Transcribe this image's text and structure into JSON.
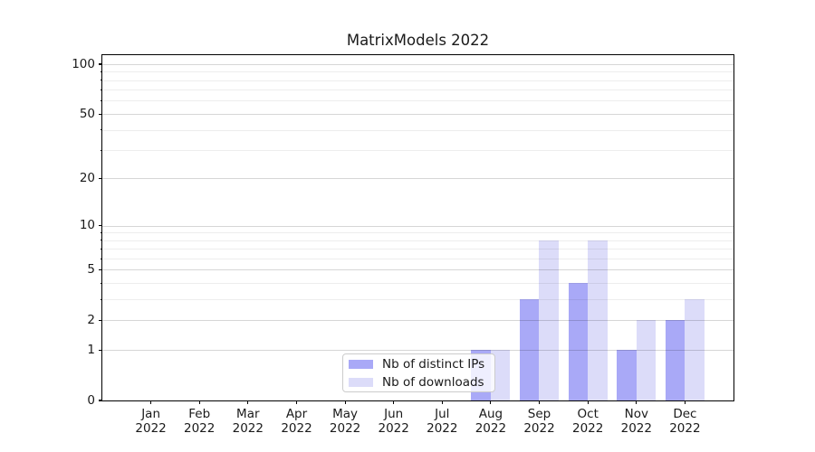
{
  "title": "MatrixModels 2022",
  "legend": {
    "items": [
      {
        "label": "Nb of distinct IPs",
        "color": "#a9a9f7"
      },
      {
        "label": "Nb of downloads",
        "color": "#dcdcf9"
      }
    ]
  },
  "chart_data": {
    "type": "bar",
    "title": "MatrixModels 2022",
    "categories": [
      "Jan",
      "Feb",
      "Mar",
      "Apr",
      "May",
      "Jun",
      "Jul",
      "Aug",
      "Sep",
      "Oct",
      "Nov",
      "Dec"
    ],
    "year_label": "2022",
    "series": [
      {
        "name": "Nb of distinct IPs",
        "color": "#a9a9f7",
        "values": [
          0,
          0,
          0,
          0,
          0,
          0,
          0,
          1,
          3,
          4,
          1,
          2
        ]
      },
      {
        "name": "Nb of downloads",
        "color": "#dcdcf9",
        "values": [
          0,
          0,
          0,
          0,
          0,
          0,
          0,
          1,
          8,
          8,
          2,
          3
        ]
      }
    ],
    "yscale": "log1p",
    "ylim": [
      0,
      100
    ],
    "yticks": [
      0,
      1,
      2,
      5,
      10,
      20,
      50,
      100
    ],
    "yticks_minor": [
      3,
      4,
      6,
      7,
      8,
      9,
      30,
      40,
      60,
      70,
      80,
      90
    ],
    "grid": "horizontal",
    "legend_position": "lower-left-of-center"
  },
  "colors": {
    "major_grid": "rgba(0,0,0,0.16)",
    "minor_grid": "rgba(0,0,0,0.07)",
    "spine": "#000000",
    "text": "#1a1a1a"
  }
}
